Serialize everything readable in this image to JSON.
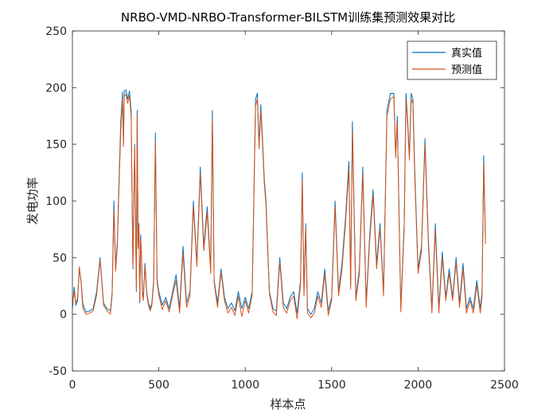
{
  "chart_data": {
    "type": "line",
    "title": "NRBO-VMD-NRBO-Transformer-BILSTM训练集预测效果对比",
    "xlabel": "样本点",
    "ylabel": "发电功率",
    "xlim": [
      0,
      2500
    ],
    "ylim": [
      -50,
      250
    ],
    "xticks": [
      "0",
      "500",
      "1000",
      "1500",
      "2000",
      "2500"
    ],
    "yticks": [
      "-50",
      "0",
      "50",
      "100",
      "150",
      "200",
      "250"
    ],
    "grid": false,
    "legend_position": "top-right",
    "series": [
      {
        "name": "真实值",
        "color": "#0072BD",
        "x": [
          0,
          10,
          20,
          30,
          40,
          50,
          60,
          70,
          80,
          100,
          120,
          140,
          160,
          170,
          180,
          200,
          220,
          230,
          240,
          250,
          260,
          270,
          280,
          290,
          295,
          300,
          310,
          320,
          330,
          340,
          350,
          360,
          370,
          375,
          380,
          385,
          390,
          395,
          400,
          405,
          410,
          420,
          430,
          440,
          450,
          460,
          470,
          480,
          490,
          500,
          520,
          540,
          560,
          580,
          600,
          620,
          640,
          660,
          680,
          700,
          720,
          740,
          760,
          780,
          800,
          810,
          820,
          840,
          860,
          880,
          900,
          920,
          940,
          960,
          980,
          1000,
          1020,
          1040,
          1060,
          1070,
          1080,
          1090,
          1100,
          1110,
          1120,
          1130,
          1140,
          1160,
          1180,
          1200,
          1220,
          1240,
          1260,
          1280,
          1300,
          1320,
          1330,
          1340,
          1350,
          1360,
          1380,
          1400,
          1420,
          1440,
          1460,
          1480,
          1500,
          1520,
          1540,
          1560,
          1580,
          1600,
          1610,
          1620,
          1640,
          1660,
          1680,
          1700,
          1720,
          1740,
          1760,
          1780,
          1800,
          1820,
          1840,
          1860,
          1870,
          1880,
          1900,
          1920,
          1930,
          1940,
          1950,
          1960,
          1970,
          1980,
          2000,
          2020,
          2040,
          2060,
          2080,
          2100,
          2120,
          2140,
          2160,
          2180,
          2200,
          2220,
          2240,
          2260,
          2280,
          2300,
          2320,
          2340,
          2360,
          2370,
          2380,
          2390
        ],
        "y": [
          5,
          24,
          8,
          12,
          40,
          30,
          10,
          5,
          2,
          3,
          5,
          20,
          50,
          30,
          10,
          5,
          3,
          20,
          100,
          40,
          65,
          120,
          170,
          196,
          150,
          197,
          198,
          190,
          197,
          180,
          40,
          150,
          20,
          180,
          60,
          80,
          10,
          70,
          50,
          20,
          15,
          45,
          20,
          10,
          5,
          10,
          30,
          160,
          30,
          20,
          8,
          15,
          5,
          20,
          35,
          5,
          60,
          10,
          20,
          100,
          45,
          130,
          60,
          95,
          40,
          180,
          30,
          10,
          40,
          15,
          5,
          10,
          3,
          20,
          5,
          15,
          5,
          20,
          190,
          195,
          150,
          185,
          155,
          120,
          100,
          60,
          20,
          5,
          3,
          50,
          10,
          5,
          15,
          20,
          1,
          30,
          125,
          20,
          80,
          5,
          0,
          5,
          20,
          10,
          40,
          3,
          15,
          100,
          20,
          45,
          85,
          135,
          25,
          170,
          15,
          40,
          130,
          10,
          70,
          110,
          45,
          80,
          20,
          180,
          195,
          195,
          140,
          175,
          5,
          80,
          195,
          170,
          140,
          195,
          190,
          130,
          40,
          60,
          155,
          65,
          5,
          80,
          5,
          55,
          15,
          40,
          15,
          50,
          10,
          45,
          5,
          15,
          5,
          30,
          5,
          20,
          140,
          65
        ]
      },
      {
        "name": "预测值",
        "color": "#D95319",
        "x": [
          0,
          10,
          20,
          30,
          40,
          50,
          60,
          70,
          80,
          100,
          120,
          140,
          160,
          170,
          180,
          200,
          220,
          230,
          240,
          250,
          260,
          270,
          280,
          290,
          295,
          300,
          310,
          320,
          330,
          340,
          350,
          360,
          370,
          375,
          380,
          385,
          390,
          395,
          400,
          405,
          410,
          420,
          430,
          440,
          450,
          460,
          470,
          480,
          490,
          500,
          520,
          540,
          560,
          580,
          600,
          620,
          640,
          660,
          680,
          700,
          720,
          740,
          760,
          780,
          800,
          810,
          820,
          840,
          860,
          880,
          900,
          920,
          940,
          960,
          980,
          1000,
          1020,
          1040,
          1060,
          1070,
          1080,
          1090,
          1100,
          1110,
          1120,
          1130,
          1140,
          1160,
          1180,
          1200,
          1220,
          1240,
          1260,
          1280,
          1300,
          1320,
          1330,
          1340,
          1350,
          1360,
          1380,
          1400,
          1420,
          1440,
          1460,
          1480,
          1500,
          1520,
          1540,
          1560,
          1580,
          1600,
          1610,
          1620,
          1640,
          1660,
          1680,
          1700,
          1720,
          1740,
          1760,
          1780,
          1800,
          1820,
          1840,
          1860,
          1870,
          1880,
          1900,
          1920,
          1930,
          1940,
          1950,
          1960,
          1970,
          1980,
          2000,
          2020,
          2040,
          2060,
          2080,
          2100,
          2120,
          2140,
          2160,
          2180,
          2200,
          2220,
          2240,
          2260,
          2280,
          2300,
          2320,
          2340,
          2360,
          2370,
          2380,
          2390
        ],
        "y": [
          8,
          20,
          10,
          14,
          42,
          28,
          6,
          2,
          0,
          1,
          3,
          17,
          48,
          28,
          8,
          3,
          0,
          18,
          92,
          38,
          60,
          114,
          162,
          190,
          148,
          193,
          194,
          186,
          193,
          175,
          42,
          148,
          22,
          176,
          58,
          78,
          12,
          66,
          48,
          18,
          12,
          42,
          18,
          8,
          3,
          8,
          27,
          152,
          28,
          17,
          4,
          12,
          2,
          17,
          30,
          1,
          54,
          6,
          16,
          95,
          42,
          124,
          56,
          90,
          36,
          172,
          28,
          6,
          37,
          12,
          1,
          6,
          -1,
          16,
          -2,
          12,
          1,
          17,
          184,
          190,
          146,
          180,
          150,
          116,
          96,
          56,
          18,
          2,
          -1,
          46,
          6,
          1,
          12,
          16,
          -4,
          26,
          118,
          16,
          76,
          1,
          -3,
          1,
          16,
          6,
          36,
          -1,
          12,
          95,
          16,
          40,
          80,
          128,
          22,
          162,
          12,
          36,
          124,
          6,
          65,
          105,
          40,
          76,
          16,
          175,
          190,
          192,
          138,
          170,
          2,
          76,
          190,
          166,
          136,
          190,
          186,
          124,
          36,
          56,
          150,
          60,
          1,
          74,
          1,
          50,
          12,
          36,
          12,
          46,
          6,
          40,
          1,
          12,
          1,
          26,
          1,
          16,
          134,
          62
        ]
      }
    ]
  }
}
